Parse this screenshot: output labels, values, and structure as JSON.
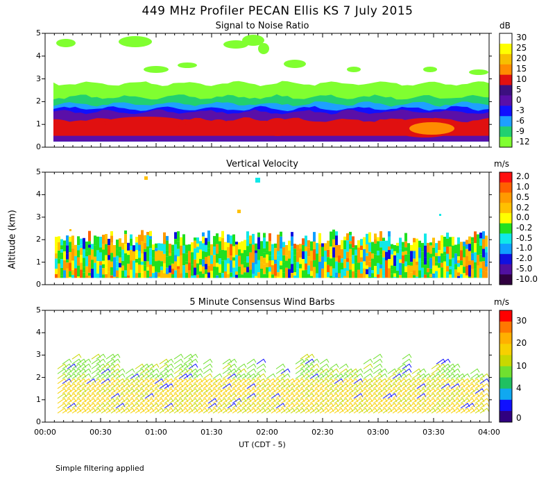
{
  "title": "449 MHz Profiler PECAN Ellis KS  7 July 2015",
  "footnote": "Simple filtering applied",
  "chart_data": [
    {
      "type": "heatmap",
      "title": "Signal to Noise Ratio",
      "ylabel": "Altitude (km)",
      "xlabel": "UT  (CDT - 5)",
      "x_ticks": [
        "00:00",
        "00:30",
        "01:00",
        "01:30",
        "02:00",
        "02:30",
        "03:00",
        "03:30",
        "04:00"
      ],
      "x_range": [
        "00:00",
        "04:00"
      ],
      "y_ticks": [
        "0",
        "1",
        "2",
        "3",
        "4",
        "5"
      ],
      "y_range": [
        0,
        5
      ],
      "colorbar": {
        "unit": "dB",
        "labels": [
          "30",
          "25",
          "20",
          "15",
          "10",
          "5",
          "0",
          "-3",
          "-6",
          "-9",
          "-12"
        ],
        "colors": [
          "#ffffff",
          "#ffff00",
          "#f7c000",
          "#ff8c00",
          "#e01010",
          "#3c1080",
          "#5a0fa8",
          "#1010ff",
          "#1ea0ff",
          "#22d070",
          "#80ff30"
        ]
      },
      "bands": [
        {
          "label": "-12",
          "y_bottom": 0.25,
          "y_top": 2.8
        },
        {
          "label": "-9",
          "y_bottom": 0.25,
          "y_top": 2.2
        },
        {
          "label": "-6",
          "y_bottom": 0.25,
          "y_top": 1.9
        },
        {
          "label": "-3",
          "y_bottom": 0.25,
          "y_top": 1.7
        },
        {
          "label": "0",
          "y_bottom": 0.25,
          "y_top": 1.55
        },
        {
          "label": "10",
          "y_bottom": 0.5,
          "y_top": 1.2
        }
      ]
    },
    {
      "type": "heatmap",
      "title": "Vertical Velocity",
      "y_ticks": [
        "0",
        "1",
        "2",
        "3",
        "4",
        "5"
      ],
      "y_range": [
        0,
        5
      ],
      "colorbar": {
        "unit": "m/s",
        "labels": [
          "2.0",
          "1.0",
          "0.5",
          "0.2",
          "0.0",
          "-0.2",
          "-0.5",
          "-1.0",
          "-2.0",
          "-5.0",
          "-10.0"
        ],
        "colors": [
          "#ff1010",
          "#ff6000",
          "#ff9a00",
          "#ffc000",
          "#ffff00",
          "#20e020",
          "#10e8e8",
          "#10a0ff",
          "#1010e0",
          "#5010a0",
          "#300040"
        ]
      }
    },
    {
      "type": "barbs",
      "title": "5 Minute Consensus Wind Barbs",
      "y_ticks": [
        "0",
        "1",
        "2",
        "3",
        "4",
        "5"
      ],
      "y_range": [
        0,
        5
      ],
      "colorbar": {
        "unit": "m/s",
        "labels": [
          "30",
          "20",
          "10",
          "4",
          "0"
        ],
        "colors": [
          "#ff0000",
          "#ff7800",
          "#ffb000",
          "#f7d000",
          "#c8d800",
          "#70e030",
          "#20c060",
          "#10a8f0",
          "#1010ff",
          "#300080"
        ]
      }
    }
  ]
}
